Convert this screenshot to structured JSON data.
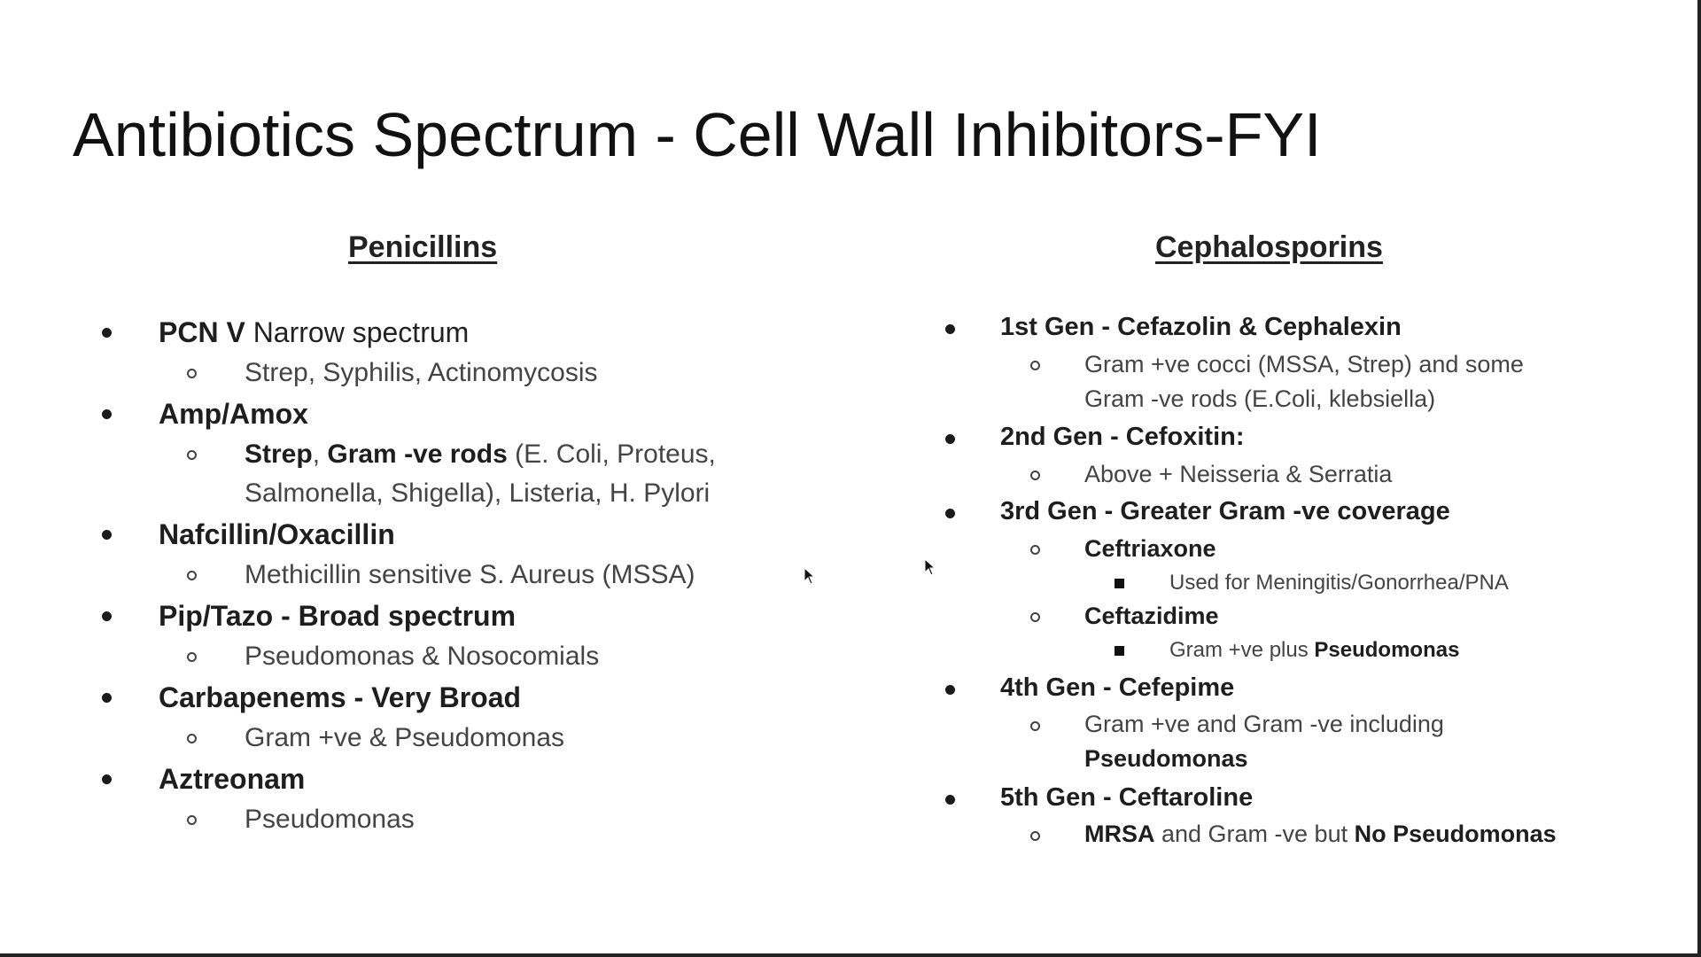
{
  "title": "Antibiotics Spectrum - Cell Wall Inhibitors-FYI",
  "penicillins": {
    "heading": "Penicillins",
    "items": [
      {
        "name": "PCN V",
        "suffix": " Narrow spectrum",
        "sub": [
          "Strep, Syphilis, Actinomycosis"
        ]
      },
      {
        "name": "Amp/Amox",
        "sub_rich": {
          "bold1": "Strep",
          "sep1": ", ",
          "bold2": "Gram -ve rods",
          "rest1": " (E. Coli, Proteus,",
          "line2": "Salmonella, Shigella), Listeria, H. Pylori"
        }
      },
      {
        "name": "Nafcillin/Oxacillin",
        "sub": [
          "Methicillin sensitive S. Aureus (MSSA)"
        ]
      },
      {
        "name": "Pip/Tazo - Broad spectrum",
        "sub": [
          "Pseudomonas & Nosocomials"
        ]
      },
      {
        "name": "Carbapenems - Very Broad",
        "sub": [
          "Gram +ve  & Pseudomonas"
        ]
      },
      {
        "name": "Aztreonam",
        "sub": [
          "Pseudomonas"
        ]
      }
    ]
  },
  "cephalosporins": {
    "heading": "Cephalosporins",
    "gen1": {
      "name": "1st Gen - Cefazolin & Cephalexin",
      "sub_line1": "Gram +ve cocci (MSSA, Strep) and some",
      "sub_line2": "Gram -ve rods (E.Coli, klebsiella)"
    },
    "gen2": {
      "name": "2nd Gen - Cefoxitin:",
      "sub": "Above + Neisseria & Serratia"
    },
    "gen3": {
      "name": "3rd Gen - Greater Gram -ve coverage",
      "drug1": "Ceftriaxone",
      "drug1_use": "Used for Meningitis/Gonorrhea/PNA",
      "drug2": "Ceftazidime",
      "drug2_use_prefix": "Gram +ve plus ",
      "drug2_use_bold": "Pseudomonas"
    },
    "gen4": {
      "name": "4th Gen - Cefepime",
      "sub_line1": "Gram +ve and Gram -ve including",
      "sub_line2": "Pseudomonas"
    },
    "gen5": {
      "name": "5th Gen - Ceftaroline",
      "bold1": "MRSA",
      "mid": " and Gram -ve but ",
      "bold2": "No Pseudomonas"
    }
  }
}
